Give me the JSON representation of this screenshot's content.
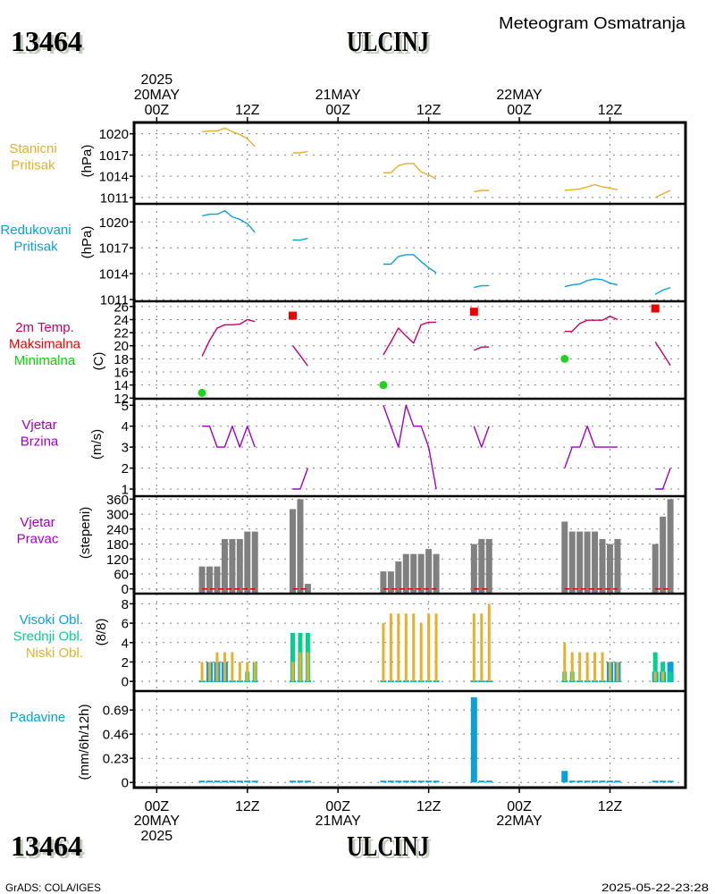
{
  "header": {
    "station_id": "13464",
    "station_name": "ULCINJ",
    "title": "Meteogram Osmatranja"
  },
  "footer": {
    "credit": "GrADS: COLA/IGES",
    "timestamp": "2025-05-22-23:28"
  },
  "chart_data": {
    "type": "meteogram",
    "title": "ULCINJ",
    "grid": true,
    "xlim": [
      -3,
      70
    ],
    "x_ticks": [
      {
        "hour": 0,
        "time": "00Z",
        "date": "20MAY",
        "year": "2025"
      },
      {
        "hour": 12,
        "time": "12Z"
      },
      {
        "hour": 24,
        "time": "00Z",
        "date": "21MAY"
      },
      {
        "hour": 36,
        "time": "12Z"
      },
      {
        "hour": 48,
        "time": "00Z",
        "date": "22MAY"
      },
      {
        "hour": 60,
        "time": "12Z"
      }
    ],
    "x": [
      6,
      7,
      8,
      9,
      10,
      11,
      12,
      13,
      18,
      19,
      20,
      30,
      31,
      32,
      33,
      34,
      35,
      36,
      37,
      42,
      43,
      44,
      54,
      55,
      56,
      57,
      58,
      59,
      60,
      61,
      66,
      67,
      68
    ],
    "panels": [
      {
        "id": "station-pressure",
        "labels": [
          {
            "text": "Stanicni",
            "color": "#E6AF2D"
          },
          {
            "text": "Pritisak",
            "color": "#E6AF2D"
          }
        ],
        "ylabel": "(hPa)",
        "ylim": [
          1010.1,
          1021.6
        ],
        "yticks": [
          1011,
          1014,
          1017,
          1020
        ],
        "ytick_labels": [
          "1011",
          "1014",
          "1017",
          "1020"
        ],
        "series": [
          {
            "id": "station-pressure",
            "name": "Stanicni Pritisak",
            "type": "line",
            "color": "#E6AF2D",
            "values": [
              1020.3,
              1020.4,
              1020.4,
              1020.8,
              1020.3,
              1019.9,
              1019.3,
              1018.2,
              1017.3,
              1017.3,
              1017.5,
              1014.5,
              1014.5,
              1015.5,
              1015.8,
              1015.8,
              1014.6,
              1014.2,
              1013.6,
              1011.8,
              1012.0,
              1012.0,
              1012.0,
              1012.1,
              1012.2,
              1012.5,
              1012.8,
              1012.5,
              1012.3,
              1012.1,
              1011.0,
              1011.5,
              1012.0
            ]
          }
        ]
      },
      {
        "id": "reduced-pressure",
        "labels": [
          {
            "text": "Redukovani",
            "color": "#0AA0DC"
          },
          {
            "text": "Pritisak",
            "color": "#0AA0DC"
          }
        ],
        "ylabel": "(hPa)",
        "ylim": [
          1010.8,
          1022.1
        ],
        "yticks": [
          1011,
          1014,
          1017,
          1020
        ],
        "ytick_labels": [
          "1011",
          "1014",
          "1017",
          "1020"
        ],
        "series": [
          {
            "id": "reduced-pressure",
            "name": "Redukovani Pritisak",
            "type": "line",
            "color": "#0AA0DC",
            "values": [
              1020.7,
              1020.9,
              1020.9,
              1021.3,
              1020.6,
              1020.3,
              1019.8,
              1018.8,
              1017.9,
              1017.9,
              1018.1,
              1015.1,
              1015.1,
              1016.0,
              1016.2,
              1016.2,
              1015.4,
              1014.7,
              1014.1,
              1012.4,
              1012.6,
              1012.6,
              1012.5,
              1012.7,
              1012.8,
              1013.2,
              1013.4,
              1013.3,
              1012.9,
              1012.7,
              1011.6,
              1012.1,
              1012.4
            ]
          }
        ]
      },
      {
        "id": "temperature",
        "labels": [
          {
            "text": "2m Temp.",
            "color": "#C80064"
          },
          {
            "text": "Maksimalna",
            "color": "#F00000"
          },
          {
            "text": "Minimalna",
            "color": "#00DC00"
          }
        ],
        "ylabel": "(C)",
        "ylim": [
          11.9,
          26.8
        ],
        "yticks": [
          12,
          14,
          16,
          18,
          20,
          22,
          24,
          26
        ],
        "ytick_labels": [
          "12",
          "14",
          "16",
          "18",
          "20",
          "22",
          "24",
          "26"
        ],
        "series": [
          {
            "id": "temp-2m",
            "name": "2m Temp.",
            "type": "line",
            "color": "#C80064",
            "values": [
              18.4,
              20.8,
              22.7,
              23.2,
              23.2,
              23.3,
              24.0,
              23.7,
              20.0,
              18.5,
              16.9,
              18.6,
              20.6,
              22.7,
              21.5,
              20.4,
              23.2,
              23.6,
              23.6,
              19.3,
              19.8,
              19.8,
              22.2,
              22.2,
              23.4,
              23.9,
              23.9,
              23.9,
              24.5,
              24.0,
              20.6,
              18.8,
              17.0
            ]
          },
          {
            "id": "temp-max",
            "name": "Maksimalna",
            "type": "square",
            "color": "#F00000",
            "x": [
              18,
              42,
              66
            ],
            "values": [
              24.6,
              25.2,
              25.7
            ]
          },
          {
            "id": "temp-min",
            "name": "Minimalna",
            "type": "circle",
            "color": "#1ED21E",
            "x": [
              6,
              30,
              54
            ],
            "values": [
              12.8,
              14.0,
              18.0
            ]
          }
        ]
      },
      {
        "id": "wind-speed",
        "labels": [
          {
            "text": "Vjetar",
            "color": "#A000C8"
          },
          {
            "text": "Brzina",
            "color": "#A000C8"
          }
        ],
        "ylabel": "(m/s)",
        "ylim": [
          0.66,
          5.31
        ],
        "yticks": [
          1,
          2,
          3,
          4,
          5
        ],
        "ytick_labels": [
          "1",
          "2",
          "3",
          "4",
          "5"
        ],
        "series": [
          {
            "id": "wind-speed",
            "name": "Vjetar Brzina",
            "type": "line",
            "color": "#A000C8",
            "values": [
              4,
              4,
              3,
              3,
              4,
              3,
              4,
              3,
              1,
              1,
              2,
              5,
              4,
              3,
              5,
              4,
              4,
              3,
              1,
              4,
              3,
              4,
              2,
              3,
              3,
              4,
              3,
              3,
              3,
              3,
              1,
              1,
              2
            ]
          }
        ]
      },
      {
        "id": "wind-direction",
        "labels": [
          {
            "text": "Vjetar",
            "color": "#A000C8"
          },
          {
            "text": "Pravac",
            "color": "#A000C8"
          }
        ],
        "ylabel": "(stepeni)",
        "ylim": [
          -19,
          372
        ],
        "yticks": [
          0,
          60,
          120,
          180,
          240,
          300,
          360
        ],
        "ytick_labels": [
          "0",
          "60",
          "120",
          "180",
          "240",
          "300",
          "360"
        ],
        "series": [
          {
            "id": "wind-direction",
            "name": "Vjetar Pravac",
            "type": "bar",
            "color": "#808080",
            "values": [
              90,
              90,
              90,
              200,
              200,
              200,
              230,
              230,
              320,
              360,
              20,
              70,
              70,
              110,
              140,
              140,
              140,
              160,
              140,
              180,
              200,
              200,
              270,
              230,
              230,
              230,
              230,
              200,
              180,
              200,
              180,
              290,
              360
            ]
          },
          {
            "id": "wind-direction-baseline",
            "name": "baseline",
            "type": "baseline-dash",
            "color": "#E00000"
          }
        ]
      },
      {
        "id": "clouds",
        "labels": [
          {
            "text": "Visoki Obl.",
            "color": "#0AA0DC"
          },
          {
            "text": "Srednji Obl.",
            "color": "#00D28C"
          },
          {
            "text": "Niski Obl.",
            "color": "#E6AF2D"
          }
        ],
        "ylabel": "(8/8)",
        "ylim": [
          -1.0,
          9.05
        ],
        "yticks": [
          0,
          2,
          4,
          6,
          8
        ],
        "ytick_labels": [
          "0",
          "2",
          "4",
          "6",
          "8"
        ],
        "zero_marker_color": "#14AABE",
        "series": [
          {
            "id": "cloud-high",
            "name": "Visoki Obl.",
            "type": "bar",
            "color": "#0AA0DC",
            "values": [
              0,
              2,
              2,
              2,
              0,
              0,
              0,
              0,
              0,
              0,
              0,
              0,
              0,
              0,
              0,
              0,
              0,
              0,
              0,
              0,
              0,
              0,
              0,
              0,
              0,
              0,
              0,
              0,
              2,
              2,
              1,
              1,
              2
            ]
          },
          {
            "id": "cloud-mid",
            "name": "Srednji Obl.",
            "type": "bar",
            "color": "#00D28C",
            "values": [
              0,
              0,
              0,
              0,
              0,
              0,
              1,
              2,
              5,
              5,
              5,
              0,
              0,
              0,
              0,
              0,
              0,
              0,
              0,
              0,
              0,
              0,
              1,
              1,
              0,
              0,
              0,
              0,
              0,
              0,
              3,
              2,
              1
            ]
          },
          {
            "id": "cloud-low",
            "name": "Niski Obl.",
            "type": "bar",
            "color": "#E6AF2D",
            "values": [
              2,
              2,
              3,
              3,
              3,
              2,
              2,
              2,
              2,
              3,
              3,
              6,
              7,
              7,
              7,
              7,
              6,
              7,
              7,
              7,
              7,
              8,
              4,
              3,
              3,
              3,
              3,
              3,
              2,
              2,
              1,
              1,
              0
            ]
          }
        ]
      },
      {
        "id": "precipitation",
        "labels": [
          {
            "text": "Padavine",
            "color": "#0AA0DC"
          }
        ],
        "ylabel": "(mm/6h/12h)",
        "ylim": [
          -0.049,
          0.87
        ],
        "yticks": [
          0,
          0.23,
          0.46,
          0.69
        ],
        "ytick_labels": [
          "0",
          "0.23",
          "0.46",
          "0.69"
        ],
        "series": [
          {
            "id": "precipitation",
            "name": "Padavine",
            "type": "bar",
            "color": "#0AA0DC",
            "values": [
              0,
              0,
              0,
              0,
              0,
              0,
              0,
              0,
              0,
              0,
              0,
              0,
              0,
              0,
              0,
              0,
              0,
              0,
              0,
              0.81,
              0,
              0,
              0.11,
              0,
              0,
              0,
              0,
              0,
              0,
              0,
              0,
              0,
              0
            ]
          }
        ]
      }
    ]
  }
}
